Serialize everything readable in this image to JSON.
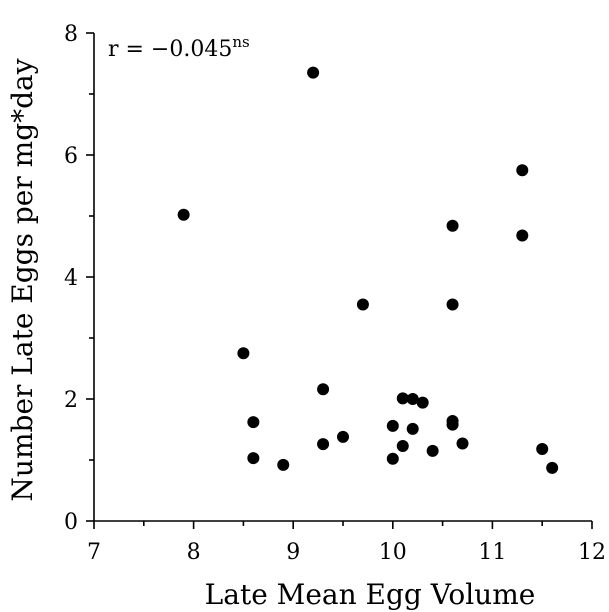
{
  "chart_data": {
    "type": "scatter",
    "title": "",
    "xlabel": "Late Mean Egg Volume",
    "ylabel": "Number Late Eggs per mg*day",
    "xlim": [
      7,
      12
    ],
    "ylim": [
      0,
      8
    ],
    "x_ticks": [
      7,
      8,
      9,
      10,
      11,
      12
    ],
    "x_tick_labels": [
      "7",
      "8",
      "9",
      "10",
      "11",
      "12"
    ],
    "y_ticks": [
      0,
      2,
      4,
      6,
      8
    ],
    "y_tick_labels": [
      "0",
      "2",
      "4",
      "6",
      "8"
    ],
    "grid": false,
    "annotation": {
      "text": "r = −0.045",
      "superscript": "ns"
    },
    "points": [
      {
        "x": 7.9,
        "y": 5.02
      },
      {
        "x": 8.5,
        "y": 2.75
      },
      {
        "x": 8.6,
        "y": 1.62
      },
      {
        "x": 8.6,
        "y": 1.03
      },
      {
        "x": 8.9,
        "y": 0.92
      },
      {
        "x": 9.2,
        "y": 7.35
      },
      {
        "x": 9.3,
        "y": 2.16
      },
      {
        "x": 9.3,
        "y": 1.26
      },
      {
        "x": 9.5,
        "y": 1.38
      },
      {
        "x": 9.7,
        "y": 3.55
      },
      {
        "x": 10.0,
        "y": 1.56
      },
      {
        "x": 10.0,
        "y": 1.02
      },
      {
        "x": 10.1,
        "y": 2.01
      },
      {
        "x": 10.1,
        "y": 1.23
      },
      {
        "x": 10.2,
        "y": 2.0
      },
      {
        "x": 10.2,
        "y": 1.51
      },
      {
        "x": 10.3,
        "y": 1.94
      },
      {
        "x": 10.4,
        "y": 1.15
      },
      {
        "x": 10.6,
        "y": 4.84
      },
      {
        "x": 10.6,
        "y": 3.55
      },
      {
        "x": 10.6,
        "y": 1.64
      },
      {
        "x": 10.6,
        "y": 1.58
      },
      {
        "x": 10.7,
        "y": 1.27
      },
      {
        "x": 11.3,
        "y": 5.75
      },
      {
        "x": 11.3,
        "y": 4.68
      },
      {
        "x": 11.5,
        "y": 1.18
      },
      {
        "x": 11.6,
        "y": 0.87
      }
    ]
  }
}
